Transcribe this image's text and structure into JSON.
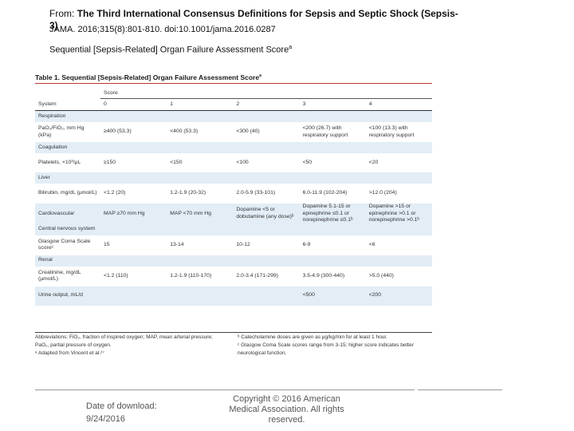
{
  "header": {
    "from_label": "From:",
    "article_title": "The Third International Consensus Definitions for Sepsis and Septic Shock (Sepsis-3)",
    "citation": "JAMA. 2016;315(8):801-810. doi:10.1001/jama.2016.0287"
  },
  "caption": {
    "text": "Sequential [Sepsis-Related] Organ Failure Assessment Score",
    "sup": "a"
  },
  "figure": {
    "title": "Table 1. Sequential [Sepsis-Related] Organ Failure Assessment Score",
    "title_sup": "a",
    "score_label": "Score",
    "headers": [
      "System",
      "0",
      "1",
      "2",
      "3",
      "4"
    ],
    "rows": [
      {
        "type": "cat",
        "label": "Respiration"
      },
      {
        "type": "row",
        "cells": [
          "PaO₂/FiO₂, mm Hg (kPa)",
          "≥400 (53.3)",
          "<400 (53.3)",
          "<300 (40)",
          "<200 (26.7) with respiratory support",
          "<100 (13.3) with respiratory support"
        ]
      },
      {
        "type": "cat",
        "label": "Coagulation"
      },
      {
        "type": "row",
        "cells": [
          "Platelets, ×10³/μL",
          "≥150",
          "<150",
          "<100",
          "<50",
          "<20"
        ]
      },
      {
        "type": "cat",
        "label": "Liver"
      },
      {
        "type": "row",
        "cells": [
          "Bilirubin, mg/dL (μmol/L)",
          "<1.2 (20)",
          "1.2-1.9 (20-32)",
          "2.0-5.9 (33-101)",
          "6.0-11.9 (102-204)",
          ">12.0 (204)"
        ]
      },
      {
        "type": "row",
        "cells": [
          "Cardiovascular",
          "MAP ≥70 mm Hg",
          "MAP <70 mm Hg",
          "Dopamine <5 or dobutamine (any dose)ᵇ",
          "Dopamine 5.1-15 or epinephrine ≤0.1 or norepinephrine ≤0.1ᵇ",
          "Dopamine >15 or epinephrine >0.1 or norepinephrine >0.1ᵇ"
        ]
      },
      {
        "type": "cat",
        "label": "Central nervous system"
      },
      {
        "type": "row",
        "cells": [
          "Glasgow Coma Scale scoreᶜ",
          "15",
          "13-14",
          "10-12",
          "6-9",
          "<6"
        ]
      },
      {
        "type": "cat",
        "label": "Renal"
      },
      {
        "type": "row",
        "cells": [
          "Creatinine, mg/dL (μmol/L)",
          "<1.2 (110)",
          "1.2-1.9 (110-170)",
          "2.0-3.4 (171-299)",
          "3.5-4.9 (300-440)",
          ">5.0 (440)"
        ]
      },
      {
        "type": "row",
        "cells": [
          "Urine output, mL/d",
          "",
          "",
          "",
          "<500",
          "<200"
        ]
      }
    ],
    "footnotes_left": [
      "Abbreviations: FiO₂, fraction of inspired oxygen; MAP, mean arterial pressure;",
      "PaO₂, partial pressure of oxygen.",
      "ᵃ Adapted from Vincent et al.²⁷"
    ],
    "footnotes_right": [
      "ᵇ Catecholamine doses are given as μg/kg/min for at least 1 hour.",
      "ᶜ Glasgow Coma Scale scores range from 3-15; higher score indicates better neurological function."
    ]
  },
  "footer": {
    "date_label": "Date of download:",
    "date_value": "9/24/2016",
    "copyright": "Copyright © 2016 American Medical Association. All rights reserved."
  },
  "colors": {
    "title_rule": "#c0392b",
    "band": "#e2edf5"
  }
}
